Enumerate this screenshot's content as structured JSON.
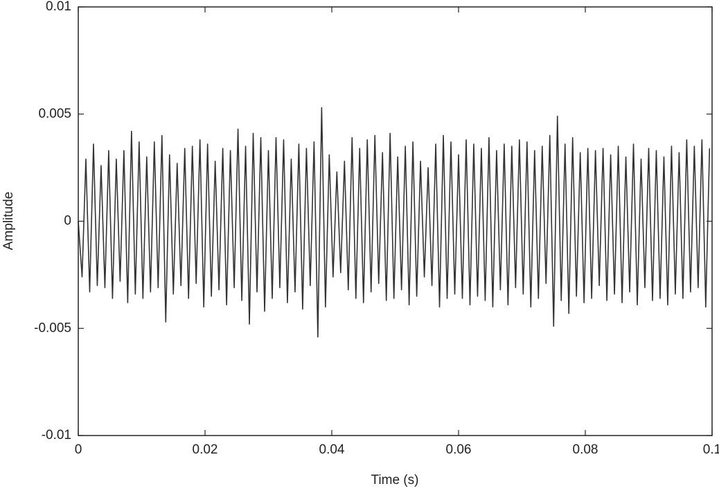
{
  "chart_data": {
    "type": "line",
    "xlabel": "Time (s)",
    "ylabel": "Amplitude",
    "color": "#333333",
    "xlim": [
      0,
      0.1
    ],
    "xticks": [
      0,
      0.02,
      0.04,
      0.06,
      0.08,
      0.1
    ],
    "ylim": [
      -0.01,
      0.01
    ],
    "yticks": [
      -0.01,
      -0.005,
      0,
      0.005,
      0.01
    ],
    "x": [
      0,
      0.0006,
      0.0012,
      0.0018,
      0.0024,
      0.003,
      0.0036,
      0.0042,
      0.0048,
      0.0054,
      0.006,
      0.0066,
      0.0072,
      0.0078,
      0.0084,
      0.009,
      0.0096,
      0.0102,
      0.0108,
      0.0114,
      0.012,
      0.0126,
      0.0132,
      0.0138,
      0.0144,
      0.015,
      0.0156,
      0.0162,
      0.0168,
      0.0174,
      0.018,
      0.0186,
      0.0192,
      0.0198,
      0.0204,
      0.021,
      0.0216,
      0.0222,
      0.0228,
      0.0234,
      0.024,
      0.0246,
      0.0252,
      0.0258,
      0.0264,
      0.027,
      0.0276,
      0.0282,
      0.0288,
      0.0294,
      0.03,
      0.0306,
      0.0312,
      0.0318,
      0.0324,
      0.033,
      0.0336,
      0.0342,
      0.0348,
      0.0354,
      0.036,
      0.0366,
      0.0372,
      0.0378,
      0.0384,
      0.039,
      0.0396,
      0.0402,
      0.0408,
      0.0414,
      0.042,
      0.0426,
      0.0432,
      0.0438,
      0.0444,
      0.045,
      0.0456,
      0.0462,
      0.0468,
      0.0474,
      0.048,
      0.0486,
      0.0492,
      0.0498,
      0.0504,
      0.051,
      0.0516,
      0.0522,
      0.0528,
      0.0534,
      0.054,
      0.0546,
      0.0552,
      0.0558,
      0.0564,
      0.057,
      0.0576,
      0.0582,
      0.0588,
      0.0594,
      0.06,
      0.0606,
      0.0612,
      0.0618,
      0.0624,
      0.063,
      0.0636,
      0.0642,
      0.0648,
      0.0654,
      0.066,
      0.0666,
      0.0672,
      0.0678,
      0.0684,
      0.069,
      0.0696,
      0.0702,
      0.0708,
      0.0714,
      0.072,
      0.0726,
      0.0732,
      0.0738,
      0.0744,
      0.075,
      0.0756,
      0.0762,
      0.0768,
      0.0774,
      0.078,
      0.0786,
      0.0792,
      0.0798,
      0.0804,
      0.081,
      0.0816,
      0.0822,
      0.0828,
      0.0834,
      0.084,
      0.0846,
      0.0852,
      0.0858,
      0.0864,
      0.087,
      0.0876,
      0.0882,
      0.0888,
      0.0894,
      0.09,
      0.0906,
      0.0912,
      0.0918,
      0.0924,
      0.093,
      0.0936,
      0.0942,
      0.0948,
      0.0954,
      0.096,
      0.0966,
      0.0972,
      0.0978,
      0.0984,
      0.099,
      0.0996
    ],
    "values": [
      0,
      -0.0026,
      0.0029,
      -0.0033,
      0.0036,
      -0.003,
      0.0026,
      -0.0031,
      0.0033,
      -0.0036,
      0.0029,
      -0.0028,
      0.0033,
      -0.0038,
      0.0042,
      -0.0034,
      0.0037,
      -0.0036,
      0.003,
      -0.0033,
      0.0037,
      -0.0031,
      0.004,
      -0.0047,
      0.0031,
      -0.0034,
      0.0027,
      -0.003,
      0.0034,
      -0.0036,
      0.0035,
      -0.0029,
      0.0038,
      -0.004,
      0.0036,
      -0.0035,
      0.0028,
      -0.0032,
      0.0034,
      -0.0039,
      0.0033,
      -0.0031,
      0.0043,
      -0.0037,
      0.0035,
      -0.0048,
      0.0041,
      -0.0033,
      0.0039,
      -0.0042,
      0.0033,
      -0.0036,
      0.0039,
      -0.0031,
      0.0038,
      -0.0038,
      0.0029,
      -0.0033,
      0.0036,
      -0.0041,
      0.0034,
      -0.003,
      0.0037,
      -0.0054,
      0.0053,
      -0.004,
      0.0031,
      -0.0026,
      0.0023,
      -0.0024,
      0.0028,
      -0.0032,
      0.0039,
      -0.0036,
      0.0034,
      -0.0038,
      0.0038,
      -0.0033,
      0.004,
      -0.0029,
      0.0032,
      -0.0037,
      0.0041,
      -0.0036,
      0.003,
      -0.0032,
      0.0035,
      -0.0039,
      0.0037,
      -0.0035,
      0.0028,
      -0.0026,
      0.0025,
      -0.003,
      0.0036,
      -0.004,
      0.004,
      -0.0036,
      0.0037,
      -0.0034,
      0.0031,
      -0.0036,
      0.0038,
      -0.0039,
      0.0036,
      -0.0035,
      0.0034,
      -0.0037,
      0.0039,
      -0.004,
      0.0033,
      -0.0032,
      0.0036,
      -0.0039,
      0.0035,
      -0.0031,
      0.0038,
      -0.0034,
      0.0037,
      -0.004,
      0.0033,
      -0.0036,
      0.0035,
      -0.0029,
      0.004,
      -0.0049,
      0.0049,
      -0.0037,
      0.0036,
      -0.0043,
      0.0039,
      -0.0035,
      0.0032,
      -0.0038,
      0.0034,
      -0.0036,
      0.0033,
      -0.003,
      0.0034,
      -0.0037,
      0.0031,
      -0.0034,
      0.0035,
      -0.0038,
      0.003,
      -0.0033,
      0.0036,
      -0.0039,
      0.0029,
      -0.0031,
      0.0034,
      -0.0037,
      0.0033,
      -0.0036,
      0.003,
      -0.0039,
      0.0035,
      -0.0034,
      0.0032,
      -0.0036,
      0.0038,
      -0.0033,
      0.0035,
      -0.0031,
      0.0038,
      -0.004,
      0.0034
    ]
  }
}
